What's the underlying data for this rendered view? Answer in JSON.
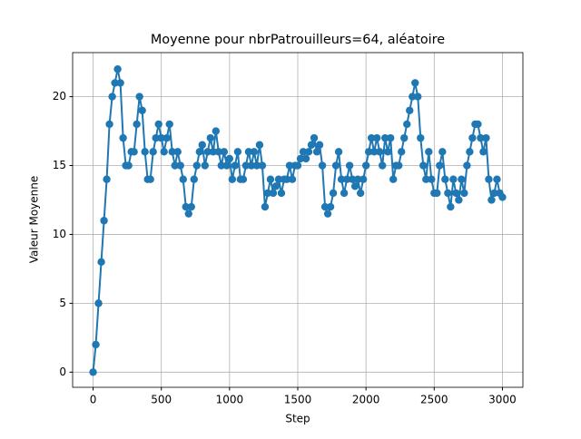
{
  "chart_data": {
    "type": "line",
    "title": "Moyenne pour nbrPatrouilleurs=64, aléatoire",
    "x_label": "Step",
    "y_label": "Valeur Moyenne",
    "x": [
      0,
      20,
      40,
      60,
      80,
      100,
      120,
      140,
      160,
      180,
      200,
      220,
      240,
      260,
      280,
      300,
      320,
      340,
      360,
      380,
      400,
      420,
      440,
      460,
      480,
      500,
      520,
      540,
      560,
      580,
      600,
      620,
      640,
      660,
      680,
      700,
      720,
      740,
      760,
      780,
      800,
      820,
      840,
      860,
      880,
      900,
      920,
      940,
      960,
      980,
      1000,
      1020,
      1040,
      1060,
      1080,
      1100,
      1120,
      1140,
      1160,
      1180,
      1200,
      1220,
      1240,
      1260,
      1280,
      1300,
      1320,
      1340,
      1360,
      1380,
      1400,
      1420,
      1440,
      1460,
      1480,
      1500,
      1520,
      1540,
      1560,
      1580,
      1600,
      1620,
      1640,
      1660,
      1680,
      1700,
      1720,
      1740,
      1760,
      1780,
      1800,
      1820,
      1840,
      1860,
      1880,
      1900,
      1920,
      1940,
      1960,
      1980,
      2000,
      2020,
      2040,
      2060,
      2080,
      2100,
      2120,
      2140,
      2160,
      2180,
      2200,
      2220,
      2240,
      2260,
      2280,
      2300,
      2320,
      2340,
      2360,
      2380,
      2400,
      2420,
      2440,
      2460,
      2480,
      2500,
      2520,
      2540,
      2560,
      2580,
      2600,
      2620,
      2640,
      2660,
      2680,
      2700,
      2720,
      2740,
      2760,
      2780,
      2800,
      2820,
      2840,
      2860,
      2880,
      2900,
      2920,
      2940,
      2960,
      2980,
      3000
    ],
    "series": [
      {
        "name": "Valeur Moyenne",
        "color": "#1f77b4",
        "values": [
          0,
          2,
          5,
          8,
          11,
          14,
          18,
          20,
          21,
          22,
          21,
          17,
          15,
          15,
          16,
          16,
          18,
          20,
          19,
          16,
          14,
          14,
          16,
          17,
          18,
          17,
          16,
          17,
          18,
          16,
          15,
          16,
          15,
          14,
          12,
          11.5,
          12,
          14,
          15,
          16,
          16.5,
          15,
          16,
          17,
          16,
          17.5,
          16,
          15,
          16,
          15,
          15.5,
          14,
          15,
          16,
          14,
          14,
          15,
          16,
          15,
          16,
          15,
          16.5,
          15,
          12,
          13,
          14,
          13,
          13.5,
          14,
          13,
          14,
          14,
          15,
          14,
          15,
          15,
          15.5,
          16,
          15.5,
          16,
          16.5,
          17,
          16,
          16.5,
          15,
          12,
          11.5,
          12,
          13,
          15,
          16,
          14,
          13,
          14,
          15,
          14,
          13.5,
          14,
          13,
          14,
          15,
          16,
          17,
          16,
          17,
          16,
          15,
          17,
          16,
          17,
          14,
          15,
          15,
          16,
          17,
          18,
          19,
          20,
          21,
          20,
          17,
          15,
          14,
          16,
          14,
          13,
          13,
          15,
          16,
          14,
          13,
          12,
          14,
          13,
          12.5,
          14,
          13,
          15,
          16,
          17,
          18,
          18,
          17,
          16,
          17,
          14,
          12.5,
          13,
          14,
          13,
          12.7
        ]
      }
    ],
    "xlim": [
      -150,
      3150
    ],
    "ylim": [
      -1.1,
      23.2
    ],
    "xticks": [
      0,
      500,
      1000,
      1500,
      2000,
      2500,
      3000
    ],
    "yticks": [
      0,
      5,
      10,
      15,
      20
    ],
    "grid": true
  }
}
